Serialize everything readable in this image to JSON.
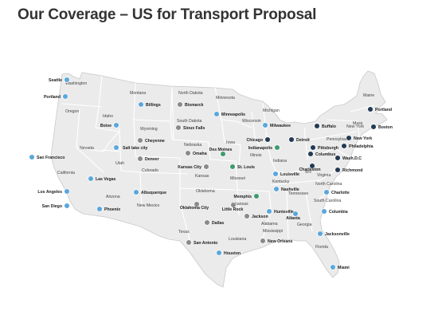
{
  "title": "Our Coverage – US for Transport Proposal",
  "colors": {
    "land": "#ebebeb",
    "border": "#ffffff",
    "outline": "#c9c9c9",
    "marker_blue": "#5aa7dc",
    "marker_gray": "#8a8a8a",
    "marker_green": "#3f9b6e",
    "marker_navy": "#233a55"
  },
  "states": [
    "Washington",
    "Oregon",
    "Idaho",
    "Montana",
    "Wyoming",
    "Nevada",
    "California",
    "Utah",
    "Colorado",
    "Arizona",
    "New Mexico",
    "North Dakota",
    "South Dakota",
    "Nebraska",
    "Kansas",
    "Oklahoma",
    "Texas",
    "Minnesota",
    "Iowa",
    "Missouri",
    "Arkansas",
    "Louisiana",
    "Wisconsin",
    "Illinois",
    "Michigan",
    "Indiana",
    "Kentucky",
    "Tennessee",
    "Mississippi",
    "Alabama",
    "Georgia",
    "Florida",
    "South Carolina",
    "North Carolina",
    "Virginia",
    "WV",
    "Pennsylvania",
    "New York",
    "Maine",
    "Mass"
  ],
  "cities": [
    {
      "name": "Seattle",
      "type": "blue"
    },
    {
      "name": "Portland",
      "type": "blue"
    },
    {
      "name": "Boise",
      "type": "blue"
    },
    {
      "name": "Billings",
      "type": "blue"
    },
    {
      "name": "Bismarck",
      "type": "gray"
    },
    {
      "name": "Minneapolis",
      "type": "blue"
    },
    {
      "name": "Sioux Falls",
      "type": "gray"
    },
    {
      "name": "Cheyenne",
      "type": "gray"
    },
    {
      "name": "Salt lake city",
      "type": "blue"
    },
    {
      "name": "San Francisco",
      "type": "blue"
    },
    {
      "name": "Las Vegas",
      "type": "blue"
    },
    {
      "name": "Los Angeles",
      "type": "blue"
    },
    {
      "name": "San Diego",
      "type": "blue"
    },
    {
      "name": "Phoenix",
      "type": "blue"
    },
    {
      "name": "Albuquerque",
      "type": "blue"
    },
    {
      "name": "Denver",
      "type": "gray"
    },
    {
      "name": "Omaha",
      "type": "gray"
    },
    {
      "name": "Kansas City",
      "type": "gray"
    },
    {
      "name": "St. Louis",
      "type": "green"
    },
    {
      "name": "Des Moines",
      "type": "green"
    },
    {
      "name": "Chicago",
      "type": "navy"
    },
    {
      "name": "Milwaukee",
      "type": "blue"
    },
    {
      "name": "Indianapolis",
      "type": "green"
    },
    {
      "name": "Detroit",
      "type": "navy"
    },
    {
      "name": "Buffalo",
      "type": "navy"
    },
    {
      "name": "Portland",
      "type": "navy"
    },
    {
      "name": "Boston",
      "type": "navy"
    },
    {
      "name": "New York",
      "type": "navy"
    },
    {
      "name": "Philadelphia",
      "type": "navy"
    },
    {
      "name": "Pittsburgh",
      "type": "navy"
    },
    {
      "name": "Columbus",
      "type": "navy"
    },
    {
      "name": "Wash.D.C",
      "type": "navy"
    },
    {
      "name": "Richmond",
      "type": "navy"
    },
    {
      "name": "Charleston",
      "type": "navy"
    },
    {
      "name": "Louisville",
      "type": "blue"
    },
    {
      "name": "Nashville",
      "type": "blue"
    },
    {
      "name": "Charlotte",
      "type": "blue"
    },
    {
      "name": "Columbia",
      "type": "blue"
    },
    {
      "name": "Memphis",
      "type": "green"
    },
    {
      "name": "Little Rock",
      "type": "gray"
    },
    {
      "name": "Oklahoma City",
      "type": "gray"
    },
    {
      "name": "Dallas",
      "type": "gray"
    },
    {
      "name": "Huntsville",
      "type": "blue"
    },
    {
      "name": "Atlanta",
      "type": "blue"
    },
    {
      "name": "Jackson",
      "type": "gray"
    },
    {
      "name": "New Orleans",
      "type": "gray"
    },
    {
      "name": "Jacksonville",
      "type": "blue"
    },
    {
      "name": "Miami",
      "type": "blue"
    },
    {
      "name": "San Antonio",
      "type": "gray"
    },
    {
      "name": "Houston",
      "type": "blue"
    }
  ]
}
